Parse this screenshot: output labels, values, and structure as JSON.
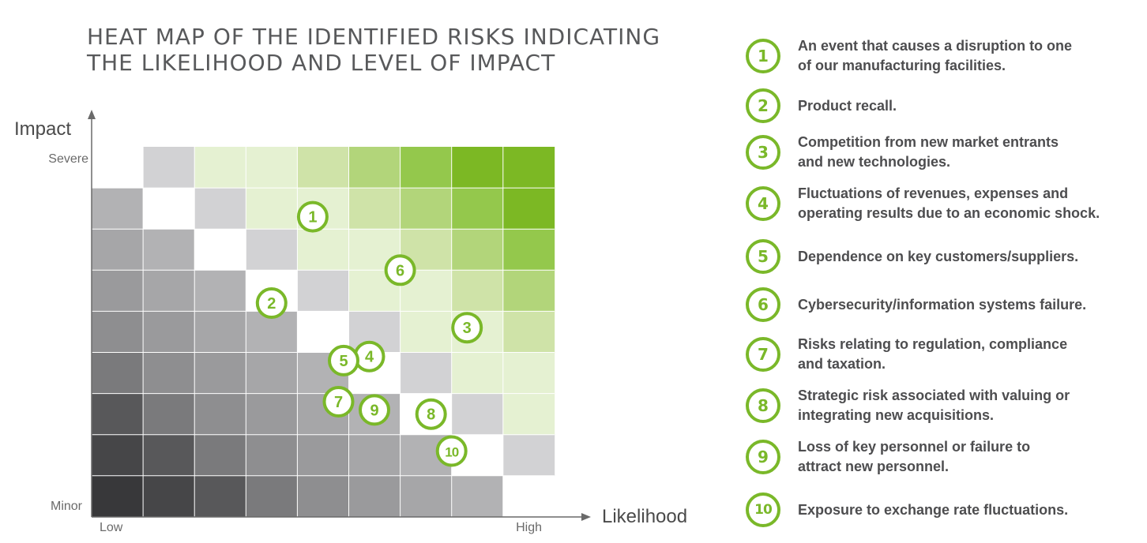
{
  "chart_data": {
    "type": "heatmap",
    "title_lines": [
      "HEAT MAP OF THE IDENTIFIED RISKS INDICATING",
      "THE LIKELIHOOD AND LEVEL OF IMPACT"
    ],
    "xlabel": "Likelihood",
    "ylabel": "Impact",
    "x_ticks": [
      "Low",
      "High"
    ],
    "y_ticks": [
      "Severe",
      "Minor"
    ],
    "grid": {
      "columns": 9,
      "rows": 9
    },
    "cell_colors": [
      [
        "#ffffff",
        "#d2d2d4",
        "#e5f1d2",
        "#e5f1d2",
        "#cfe3a8",
        "#b2d57a",
        "#94c84c",
        "#7cb824",
        "#7cb824"
      ],
      [
        "#b2b2b4",
        "#ffffff",
        "#d2d2d4",
        "#e5f1d2",
        "#e5f1d2",
        "#cfe3a8",
        "#b2d57a",
        "#94c84c",
        "#7cb824"
      ],
      [
        "#a6a6a8",
        "#b2b2b4",
        "#ffffff",
        "#d2d2d4",
        "#e5f1d2",
        "#e5f1d2",
        "#cfe3a8",
        "#b2d57a",
        "#94c84c"
      ],
      [
        "#9a9a9c",
        "#a6a6a8",
        "#b2b2b4",
        "#ffffff",
        "#d2d2d4",
        "#e5f1d2",
        "#e5f1d2",
        "#cfe3a8",
        "#b2d57a"
      ],
      [
        "#8e8e90",
        "#9a9a9c",
        "#a6a6a8",
        "#b2b2b4",
        "#ffffff",
        "#d2d2d4",
        "#e5f1d2",
        "#e5f1d2",
        "#cfe3a8"
      ],
      [
        "#7a7a7c",
        "#8e8e90",
        "#9a9a9c",
        "#a6a6a8",
        "#b2b2b4",
        "#ffffff",
        "#d2d2d4",
        "#e5f1d2",
        "#e5f1d2"
      ],
      [
        "#58585a",
        "#7a7a7c",
        "#8e8e90",
        "#9a9a9c",
        "#a6a6a8",
        "#b2b2b4",
        "#ffffff",
        "#d2d2d4",
        "#e5f1d2"
      ],
      [
        "#464648",
        "#58585a",
        "#7a7a7c",
        "#8e8e90",
        "#9a9a9c",
        "#a6a6a8",
        "#b2b2b4",
        "#ffffff",
        "#d2d2d4"
      ],
      [
        "#38383a",
        "#464648",
        "#58585a",
        "#7a7a7c",
        "#8e8e90",
        "#9a9a9c",
        "#a6a6a8",
        "#b2b2b4",
        "#ffffff"
      ]
    ],
    "risk_points": [
      {
        "id": "1",
        "likelihood": 4.3,
        "impact": 7.3
      },
      {
        "id": "2",
        "likelihood": 3.5,
        "impact": 5.2
      },
      {
        "id": "3",
        "likelihood": 7.3,
        "impact": 4.6
      },
      {
        "id": "4",
        "likelihood": 5.4,
        "impact": 3.9
      },
      {
        "id": "5",
        "likelihood": 4.9,
        "impact": 3.8
      },
      {
        "id": "6",
        "likelihood": 6.0,
        "impact": 6.0
      },
      {
        "id": "7",
        "likelihood": 4.8,
        "impact": 2.8
      },
      {
        "id": "8",
        "likelihood": 6.6,
        "impact": 2.5
      },
      {
        "id": "9",
        "likelihood": 5.5,
        "impact": 2.6
      },
      {
        "id": "10",
        "likelihood": 7.0,
        "impact": 1.6
      }
    ],
    "accent_color": "#7ab829"
  },
  "legend": [
    {
      "number": "1",
      "text": "An event that causes a disruption to one\nof our manufacturing facilities."
    },
    {
      "number": "2",
      "text": "Product recall."
    },
    {
      "number": "3",
      "text": "Competition from new market entrants\nand new technologies."
    },
    {
      "number": "4",
      "text": "Fluctuations of revenues, expenses and\noperating results due to an economic shock."
    },
    {
      "number": "5",
      "text": "Dependence on key customers/suppliers."
    },
    {
      "number": "6",
      "text": "Cybersecurity/information systems failure."
    },
    {
      "number": "7",
      "text": "Risks relating to regulation, compliance\nand taxation."
    },
    {
      "number": "8",
      "text": "Strategic risk associated with valuing or\nintegrating new acquisitions."
    },
    {
      "number": "9",
      "text": "Loss of key personnel or failure to\nattract new personnel."
    },
    {
      "number": "10",
      "text": "Exposure to exchange rate fluctuations."
    }
  ]
}
